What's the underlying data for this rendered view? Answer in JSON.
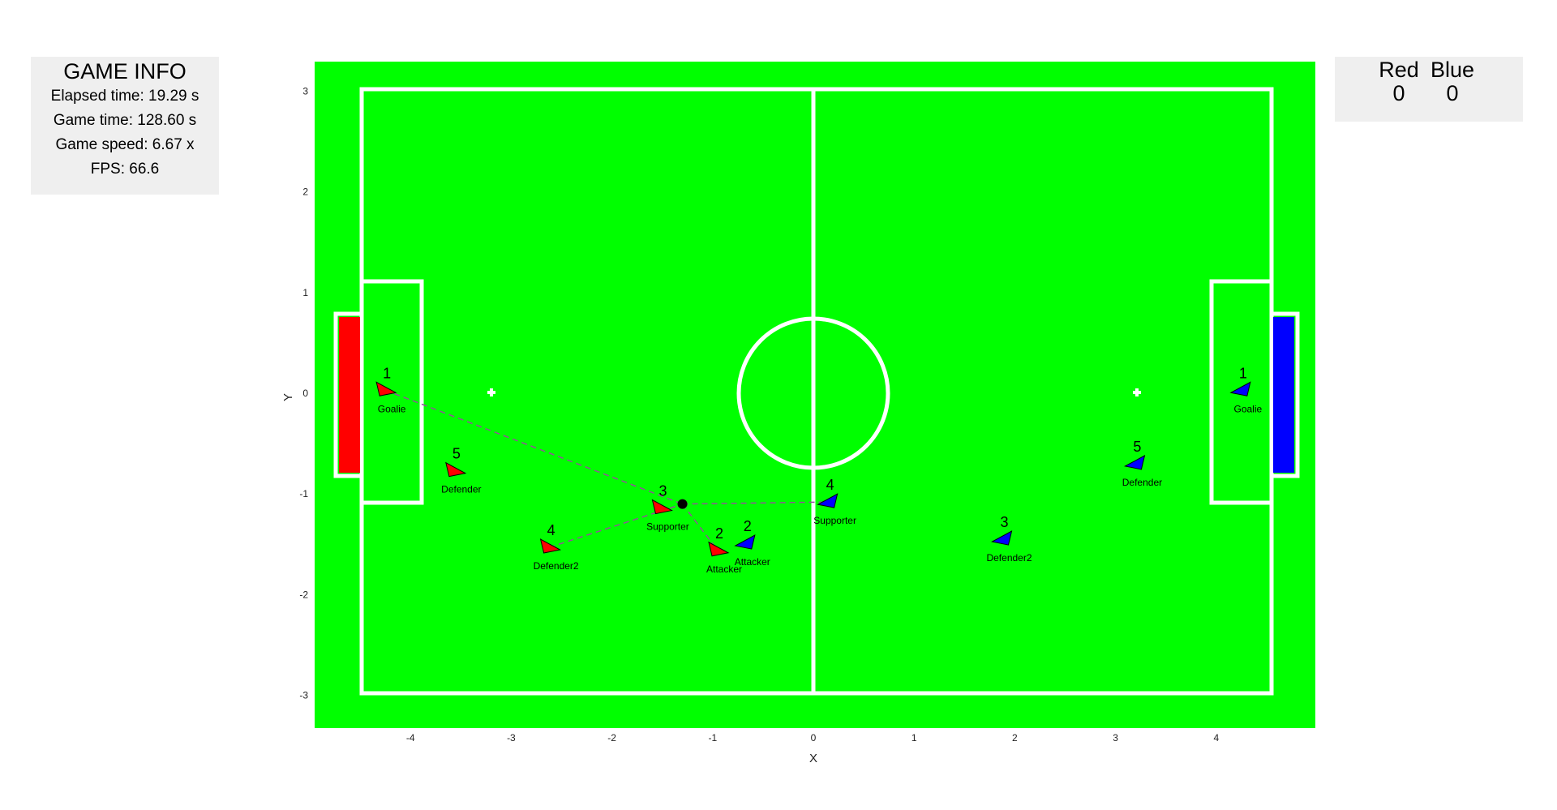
{
  "game_info": {
    "title": "GAME INFO",
    "elapsed_time": "Elapsed time: 19.29 s",
    "game_time": "Game time: 128.60 s",
    "game_speed": "Game speed: 6.67 x",
    "fps": "FPS: 66.6"
  },
  "score": {
    "red_label": "Red",
    "blue_label": "Blue",
    "red_score": "0",
    "blue_score": "0"
  },
  "axes": {
    "x_label": "X",
    "y_label": "Y",
    "x_ticks": [
      "-4",
      "-3",
      "-2",
      "-1",
      "0",
      "1",
      "2",
      "3",
      "4"
    ],
    "y_ticks": [
      "3",
      "2",
      "1",
      "0",
      "-1",
      "-2",
      "-3"
    ]
  },
  "colors": {
    "field": "#00ff00",
    "lines": "#ffffff",
    "red_team": "#ff0000",
    "blue_team": "#0000ff",
    "pass_line": "#9a4aa0",
    "ball": "#000000"
  },
  "ball": {
    "x": -1.3,
    "y": -1.1
  },
  "robots": [
    {
      "team": "red",
      "number": "1",
      "role": "Goalie",
      "x": -4.25,
      "y": 0.03,
      "dir": 0
    },
    {
      "team": "red",
      "number": "5",
      "role": "Defender",
      "x": -3.56,
      "y": -0.77,
      "dir": 0
    },
    {
      "team": "red",
      "number": "4",
      "role": "Defender2",
      "x": -2.62,
      "y": -1.53,
      "dir": 0
    },
    {
      "team": "red",
      "number": "3",
      "role": "Supporter",
      "x": -1.51,
      "y": -1.14,
      "dir": 0
    },
    {
      "team": "red",
      "number": "2",
      "role": "Attacker",
      "x": -0.95,
      "y": -1.56,
      "dir": 0
    },
    {
      "team": "blue",
      "number": "1",
      "role": "Goalie",
      "x": 4.25,
      "y": 0.03,
      "dir": 180
    },
    {
      "team": "blue",
      "number": "5",
      "role": "Defender",
      "x": 3.2,
      "y": -0.7,
      "dir": 180
    },
    {
      "team": "blue",
      "number": "4",
      "role": "Supporter",
      "x": 0.15,
      "y": -1.08,
      "dir": 180
    },
    {
      "team": "blue",
      "number": "2",
      "role": "Attacker",
      "x": -0.67,
      "y": -1.49,
      "dir": 180
    },
    {
      "team": "blue",
      "number": "3",
      "role": "Defender2",
      "x": 1.88,
      "y": -1.45,
      "dir": 180
    }
  ],
  "pass_lines": [
    {
      "from": [
        -4.25,
        0.03
      ],
      "to": [
        -1.3,
        -1.1
      ]
    },
    {
      "from": [
        -2.62,
        -1.53
      ],
      "to": [
        -1.3,
        -1.1
      ]
    },
    {
      "from": [
        -1.3,
        -1.1
      ],
      "to": [
        -0.95,
        -1.56
      ]
    },
    {
      "from": [
        -1.3,
        -1.1
      ],
      "to": [
        0.15,
        -1.08
      ]
    }
  ]
}
